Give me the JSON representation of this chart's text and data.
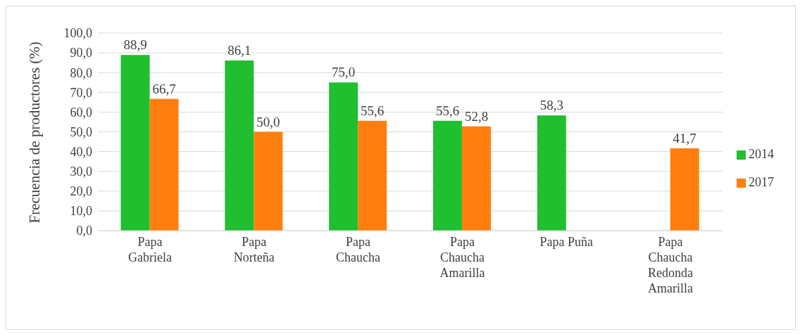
{
  "chart_data": {
    "type": "bar",
    "ylabel": "Frecuencia de productores (%)",
    "categories": [
      "Papa Gabriela",
      "Papa Norteña",
      "Papa Chaucha",
      "Papa Chaucha Amarilla",
      "Papa Puña",
      "Papa Chaucha Redonda Amarilla"
    ],
    "series": [
      {
        "name": "2014",
        "color": "#1fbf2f",
        "values": [
          88.9,
          86.1,
          75.0,
          55.6,
          58.3,
          null
        ],
        "value_labels": [
          "88,9",
          "86,1",
          "75,0",
          "55,6",
          "58,3",
          null
        ]
      },
      {
        "name": "2017",
        "color": "#ff7f0e",
        "values": [
          66.7,
          50.0,
          55.6,
          52.8,
          null,
          41.7
        ],
        "value_labels": [
          "66,7",
          "50,0",
          "55,6",
          "52,8",
          null,
          "41,7"
        ]
      }
    ],
    "ylim": [
      0,
      100
    ],
    "yticks": [
      {
        "value": 0,
        "label": "0,0"
      },
      {
        "value": 10,
        "label": "10,0"
      },
      {
        "value": 20,
        "label": "20,0"
      },
      {
        "value": 30,
        "label": "30,0"
      },
      {
        "value": 40,
        "label": "40,0"
      },
      {
        "value": 50,
        "label": "50,0"
      },
      {
        "value": 60,
        "label": "60,0"
      },
      {
        "value": 70,
        "label": "70,0"
      },
      {
        "value": 80,
        "label": "80,0"
      },
      {
        "value": 90,
        "label": "90,0"
      },
      {
        "value": 100,
        "label": "100,0"
      }
    ],
    "grid": "y",
    "legend": "right"
  }
}
